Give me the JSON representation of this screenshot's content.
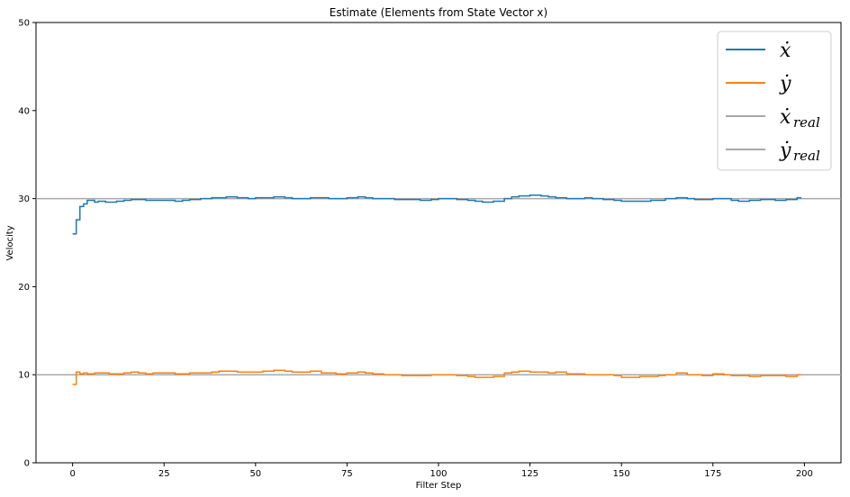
{
  "chart_data": {
    "type": "line",
    "title": "Estimate (Elements from State Vector x)",
    "xlabel": "Filter Step",
    "ylabel": "Velocity",
    "xlim": [
      -10,
      210
    ],
    "ylim": [
      0,
      50
    ],
    "xticks": [
      0,
      25,
      50,
      75,
      100,
      125,
      150,
      175,
      200
    ],
    "yticks": [
      0,
      10,
      20,
      30,
      40,
      50
    ],
    "grid": false,
    "legend_position": "top-right",
    "step": true,
    "series": [
      {
        "name": "ẋ",
        "color": "#1f77b4",
        "x": [
          0,
          1,
          2,
          3,
          4,
          5,
          6,
          7,
          8,
          9,
          10,
          12,
          14,
          16,
          18,
          20,
          22,
          25,
          28,
          30,
          32,
          35,
          38,
          40,
          42,
          45,
          48,
          50,
          52,
          55,
          58,
          60,
          62,
          65,
          68,
          70,
          72,
          75,
          78,
          80,
          82,
          85,
          88,
          90,
          92,
          95,
          98,
          100,
          102,
          105,
          108,
          110,
          112,
          115,
          118,
          120,
          122,
          125,
          128,
          130,
          132,
          135,
          138,
          140,
          142,
          145,
          148,
          150,
          152,
          155,
          158,
          160,
          162,
          165,
          168,
          170,
          172,
          175,
          178,
          180,
          182,
          185,
          188,
          190,
          192,
          195,
          198,
          199
        ],
        "values": [
          26.0,
          27.6,
          29.1,
          29.4,
          29.8,
          29.8,
          29.6,
          29.7,
          29.7,
          29.6,
          29.6,
          29.7,
          29.8,
          29.9,
          29.9,
          29.8,
          29.8,
          29.8,
          29.7,
          29.8,
          29.9,
          30.0,
          30.1,
          30.1,
          30.2,
          30.1,
          30.0,
          30.1,
          30.1,
          30.2,
          30.1,
          30.0,
          30.0,
          30.1,
          30.1,
          30.0,
          30.0,
          30.1,
          30.2,
          30.1,
          30.0,
          30.0,
          29.9,
          29.9,
          29.9,
          29.8,
          29.9,
          30.0,
          30.0,
          29.9,
          29.8,
          29.7,
          29.6,
          29.7,
          30.0,
          30.2,
          30.3,
          30.4,
          30.3,
          30.2,
          30.1,
          30.0,
          30.0,
          30.1,
          30.0,
          29.9,
          29.8,
          29.7,
          29.7,
          29.7,
          29.8,
          29.8,
          30.0,
          30.1,
          30.0,
          29.9,
          29.9,
          30.0,
          30.0,
          29.8,
          29.7,
          29.8,
          29.9,
          29.9,
          29.8,
          29.9,
          30.1,
          30.0
        ]
      },
      {
        "name": "ẏ",
        "color": "#ff7f0e",
        "x": [
          0,
          1,
          2,
          3,
          4,
          6,
          8,
          10,
          12,
          14,
          16,
          18,
          20,
          22,
          25,
          28,
          30,
          32,
          35,
          38,
          40,
          42,
          45,
          48,
          50,
          52,
          55,
          58,
          60,
          62,
          65,
          68,
          70,
          72,
          75,
          78,
          80,
          82,
          85,
          88,
          90,
          92,
          95,
          98,
          100,
          102,
          105,
          108,
          110,
          112,
          115,
          118,
          120,
          122,
          125,
          128,
          130,
          132,
          135,
          138,
          140,
          142,
          145,
          148,
          150,
          152,
          155,
          158,
          160,
          162,
          165,
          168,
          170,
          172,
          175,
          178,
          180,
          182,
          185,
          188,
          190,
          192,
          195,
          198,
          199
        ],
        "values": [
          8.9,
          10.3,
          10.1,
          10.2,
          10.1,
          10.2,
          10.2,
          10.1,
          10.1,
          10.2,
          10.3,
          10.2,
          10.1,
          10.2,
          10.2,
          10.1,
          10.1,
          10.2,
          10.2,
          10.3,
          10.4,
          10.4,
          10.3,
          10.3,
          10.3,
          10.4,
          10.5,
          10.4,
          10.3,
          10.3,
          10.4,
          10.2,
          10.2,
          10.1,
          10.2,
          10.3,
          10.2,
          10.1,
          10.0,
          10.0,
          9.9,
          9.9,
          9.9,
          10.0,
          10.0,
          10.0,
          9.9,
          9.8,
          9.7,
          9.7,
          9.8,
          10.2,
          10.3,
          10.4,
          10.3,
          10.3,
          10.2,
          10.3,
          10.1,
          10.1,
          10.0,
          10.0,
          10.0,
          9.9,
          9.7,
          9.7,
          9.8,
          9.8,
          9.9,
          10.0,
          10.2,
          10.0,
          10.0,
          9.9,
          10.1,
          10.0,
          9.9,
          9.9,
          9.8,
          9.9,
          9.9,
          9.9,
          9.8,
          10.0,
          10.0
        ]
      }
    ],
    "reference_lines": [
      {
        "name": "ẋ",
        "subscript": "real",
        "value": 30,
        "color": "#a9a9a9"
      },
      {
        "name": "ẏ",
        "subscript": "real",
        "value": 10,
        "color": "#a9a9a9"
      }
    ]
  }
}
